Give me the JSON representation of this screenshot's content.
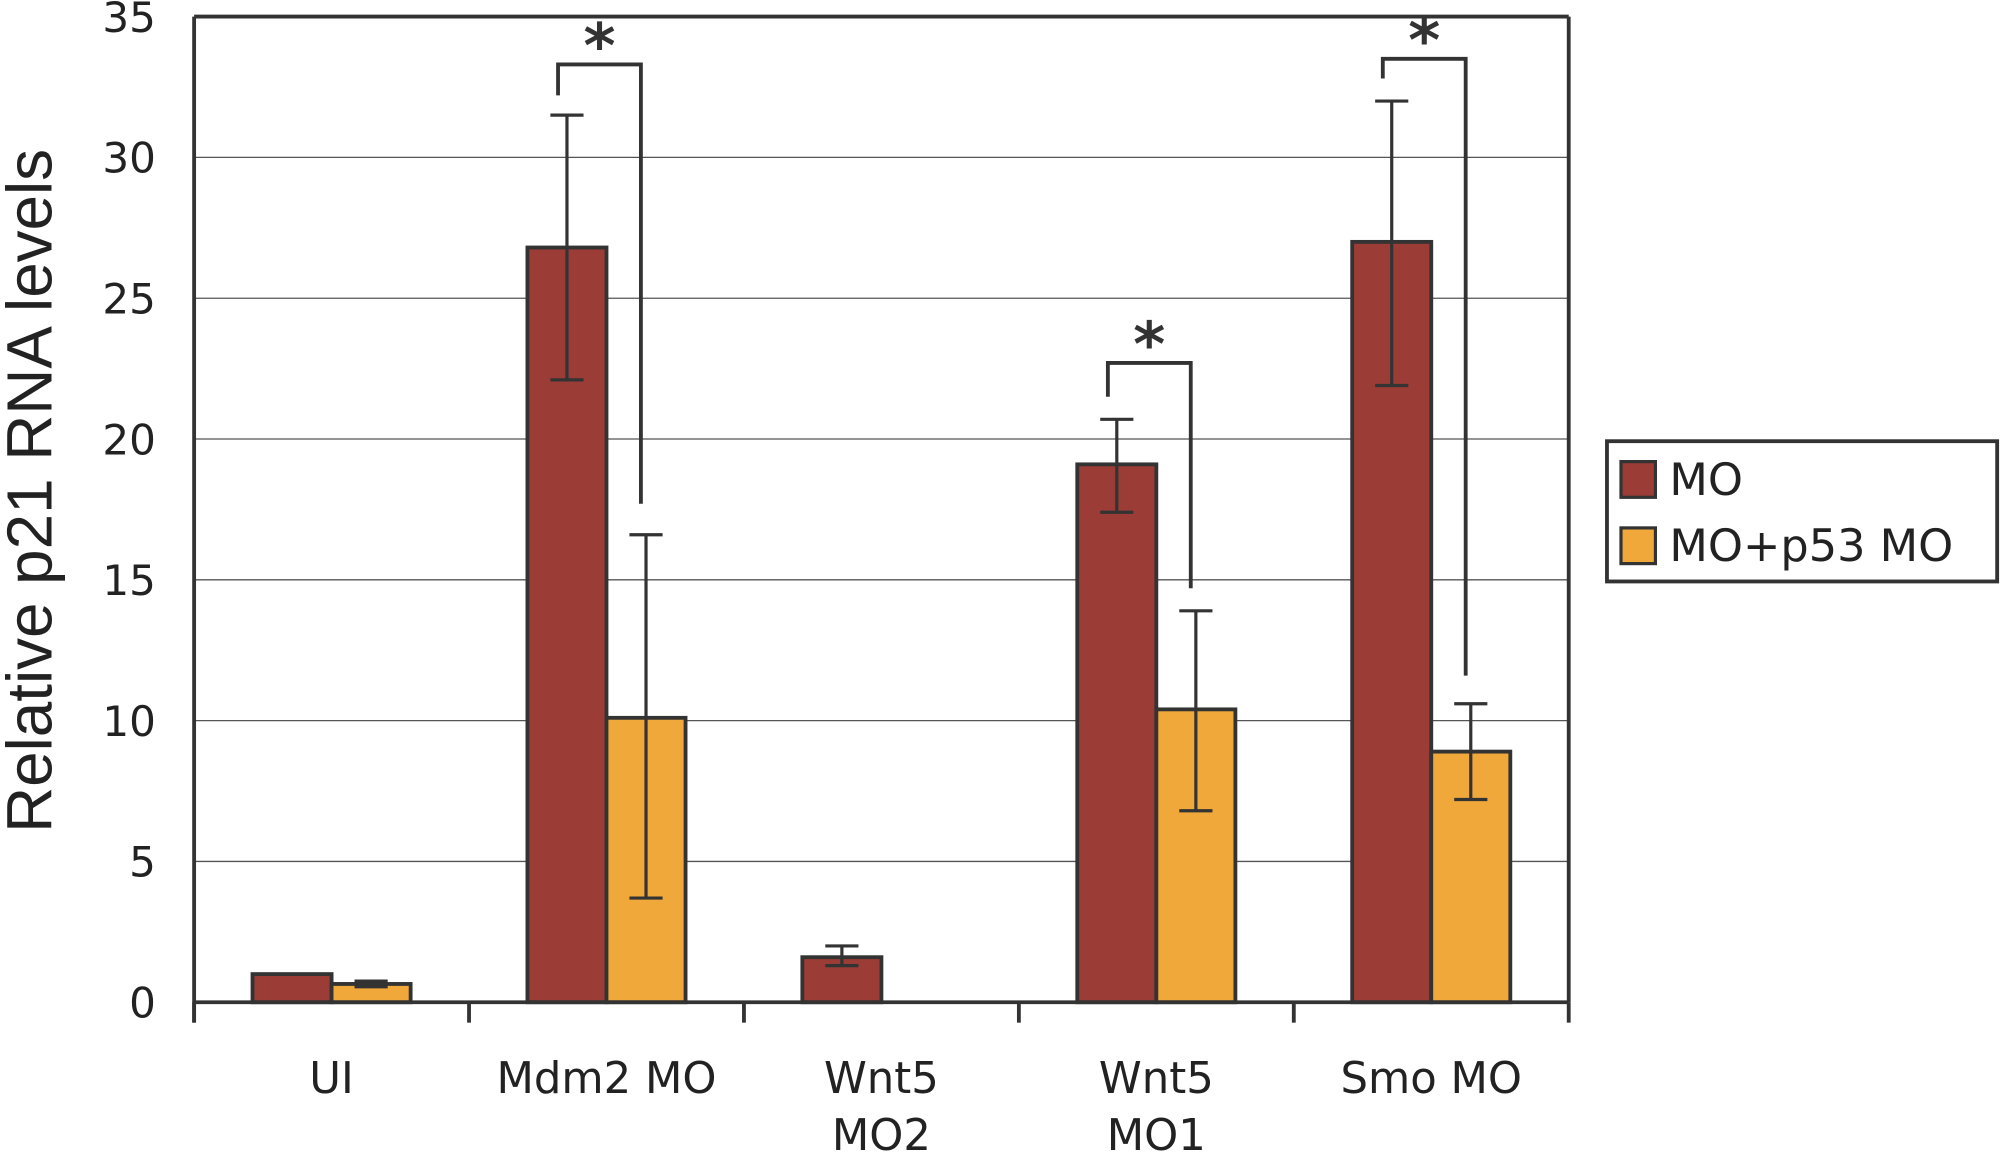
{
  "chart_data": {
    "type": "bar",
    "title": "",
    "xlabel": "",
    "ylabel": "Relative p21 RNA levels",
    "ylim": [
      0,
      35
    ],
    "yticks": [
      0,
      5,
      10,
      15,
      20,
      25,
      30,
      35
    ],
    "grid": true,
    "categories": [
      [
        "UI"
      ],
      [
        "Mdm2 MO"
      ],
      [
        "Wnt5",
        "MO2"
      ],
      [
        "Wnt5",
        "MO1"
      ],
      [
        "Smo MO"
      ]
    ],
    "series": [
      {
        "name": "MO",
        "color": "#9b3d36",
        "values": [
          1.0,
          26.8,
          1.6,
          19.1,
          27.0
        ],
        "err_low": [
          1.0,
          22.1,
          1.3,
          17.4,
          21.9
        ],
        "err_high": [
          1.0,
          31.5,
          2.0,
          20.7,
          32.0
        ]
      },
      {
        "name": "MO+p53 MO",
        "color": "#f0a83a",
        "values": [
          0.65,
          10.1,
          null,
          10.4,
          8.9
        ],
        "err_low": [
          0.55,
          3.7,
          null,
          6.8,
          7.2
        ],
        "err_high": [
          0.75,
          16.6,
          null,
          13.9,
          10.6
        ]
      }
    ],
    "significance": [
      {
        "category_index": 1,
        "label": "*",
        "bracket_y": 33.3,
        "left_end": 32.2,
        "right_end": 17.7
      },
      {
        "category_index": 3,
        "label": "*",
        "bracket_y": 22.7,
        "left_end": 21.5,
        "right_end": 14.7
      },
      {
        "category_index": 4,
        "label": "*",
        "bracket_y": 33.5,
        "left_end": 32.8,
        "right_end": 11.6
      }
    ],
    "legend_position": "right"
  }
}
